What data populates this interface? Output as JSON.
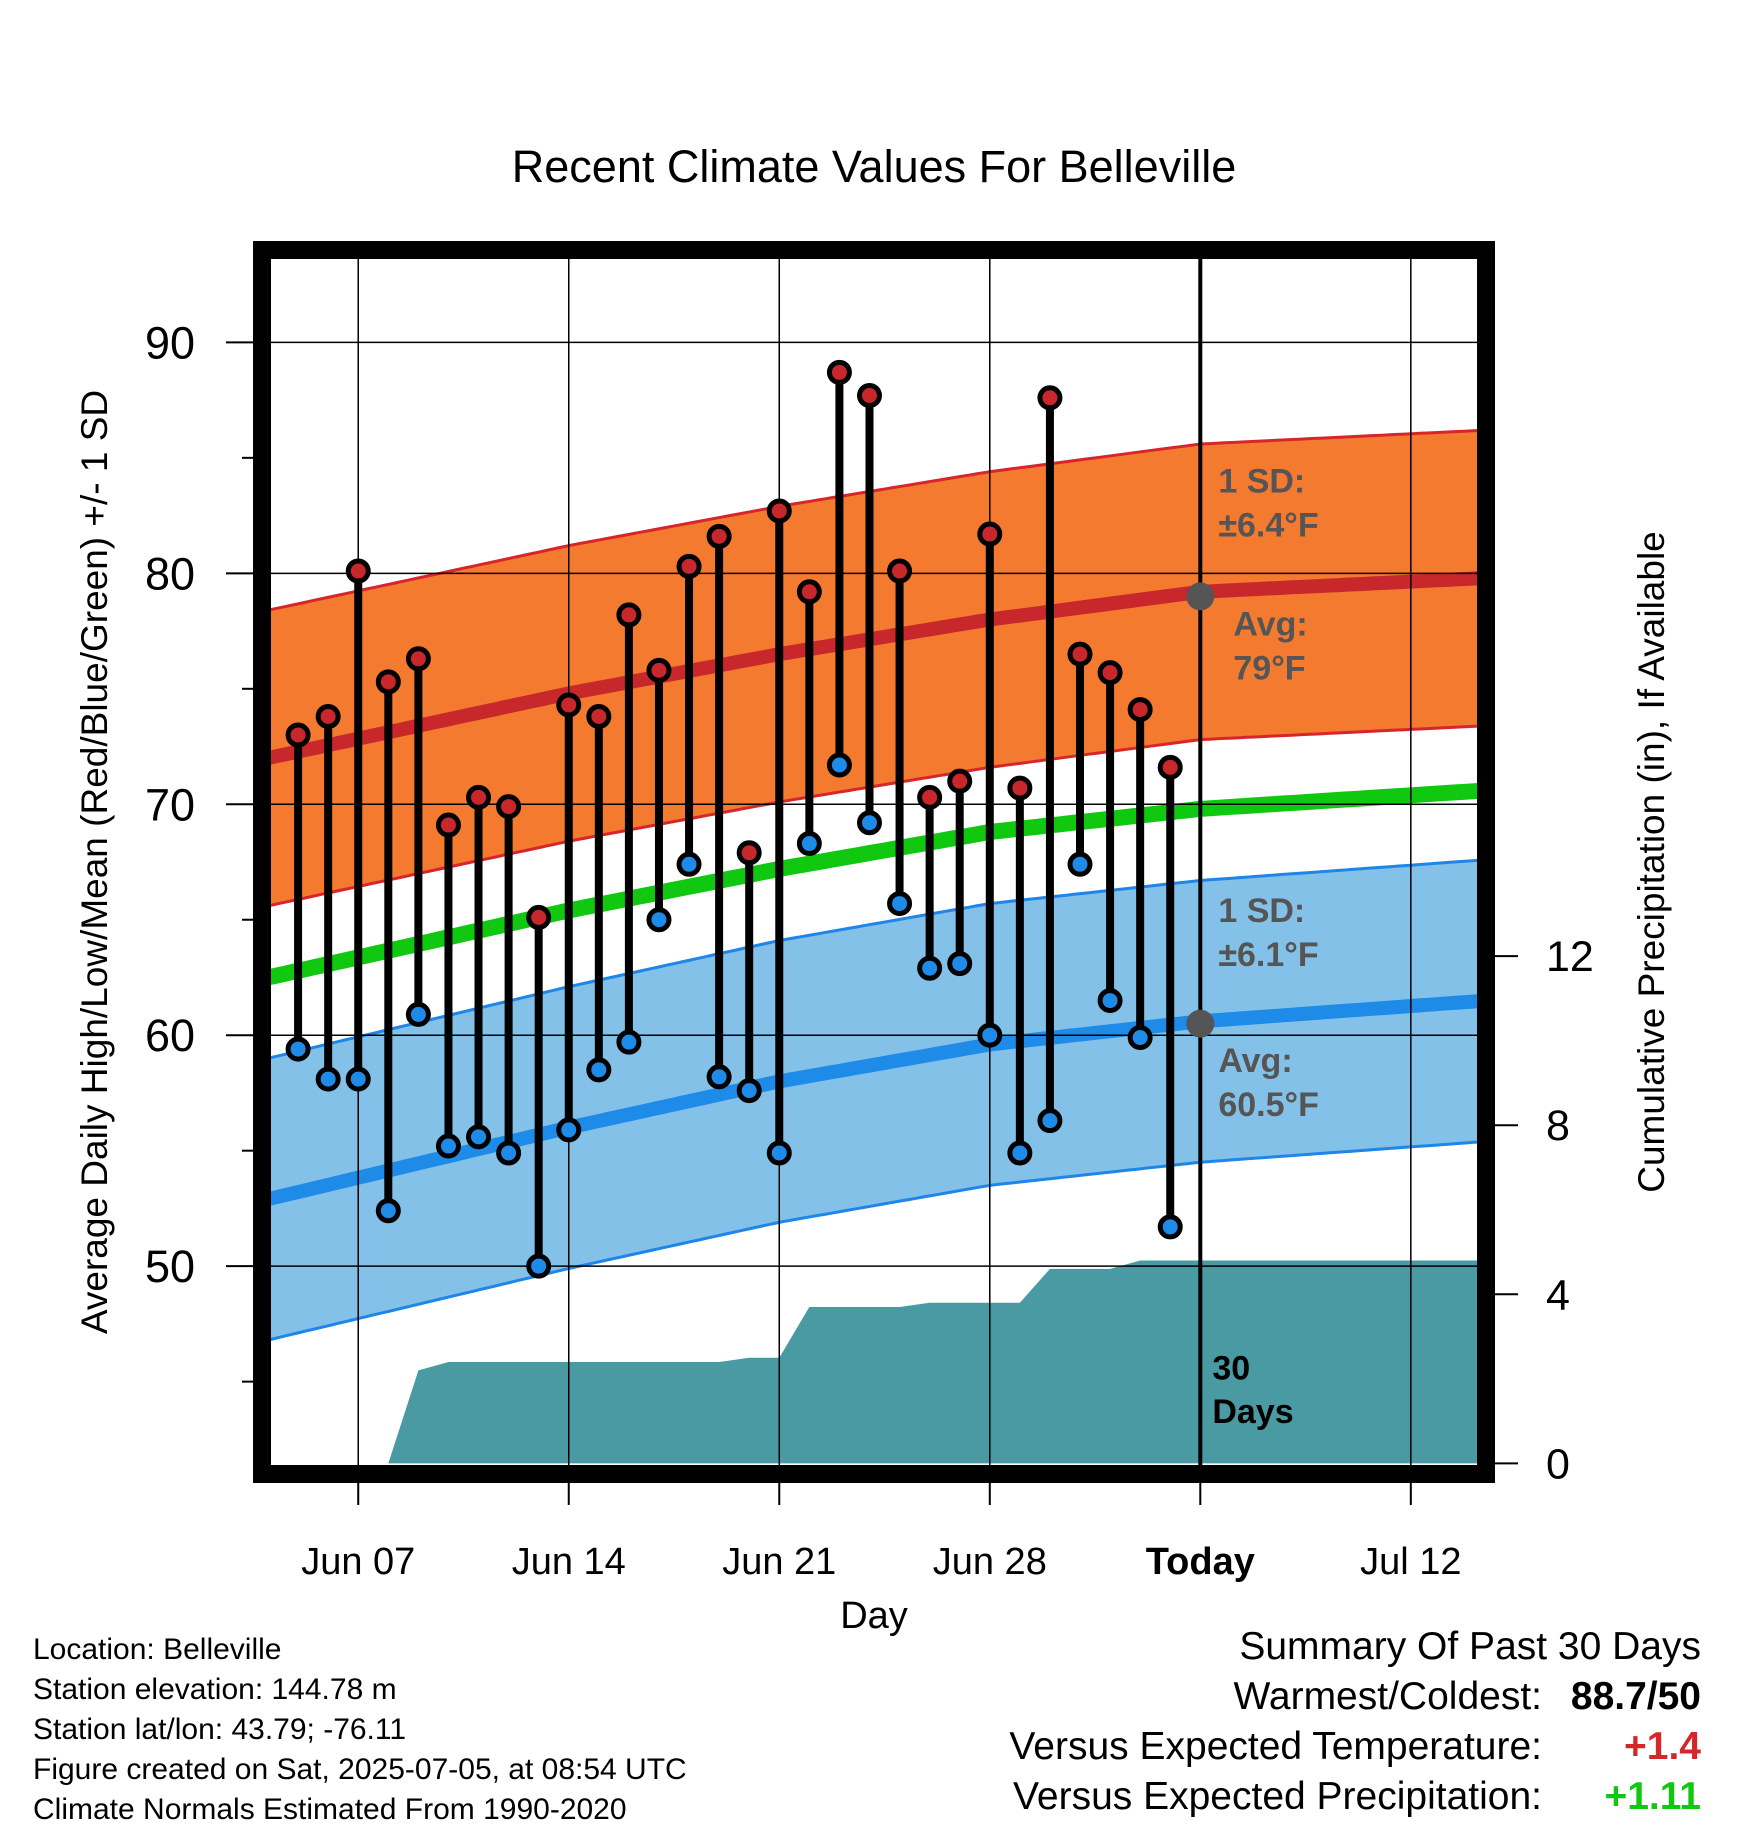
{
  "chart_data": {
    "type": "line",
    "title": "Recent Climate Values For Belleville",
    "xlabel": "Day",
    "ylabel_left": "Average Daily High/Low/Mean (Red/Blue/Green) +/- 1 SD",
    "ylabel_right": "Cumulative Precipitation (in), If Available",
    "x_ticks": [
      {
        "day": 7,
        "label": "Jun 07"
      },
      {
        "day": 14,
        "label": "Jun 14"
      },
      {
        "day": 21,
        "label": "Jun 21"
      },
      {
        "day": 28,
        "label": "Jun 28"
      },
      {
        "day": 35,
        "label": "Today"
      },
      {
        "day": 42,
        "label": "Jul 12"
      }
    ],
    "x_axis_note": "day numbers count from May 31 (day 1 = Jun 01)",
    "xlim": [
      3.8,
      44.5
    ],
    "ylim": [
      41,
      94
    ],
    "y_ticks": [
      50,
      60,
      70,
      80,
      90
    ],
    "y2lim": [
      -0.25,
      28.7
    ],
    "y2_ticks": [
      0,
      4,
      8,
      12
    ],
    "today_day": 35,
    "today_label": "30\nDays",
    "normal_high": {
      "day": [
        4,
        14,
        21,
        28,
        35,
        44.5
      ],
      "values": [
        72.0,
        74.8,
        76.5,
        78.0,
        79.2,
        79.8
      ]
    },
    "normal_high_sd": 6.4,
    "normal_low": {
      "day": [
        4,
        14,
        21,
        28,
        35,
        44.5
      ],
      "values": [
        52.9,
        56.0,
        58.0,
        59.6,
        60.6,
        61.5
      ]
    },
    "normal_low_sd": 6.1,
    "normal_mean": {
      "day": [
        4,
        14,
        21,
        28,
        35,
        44.5
      ],
      "values": [
        62.5,
        65.4,
        67.2,
        68.8,
        69.8,
        70.6
      ]
    },
    "annotations": {
      "high_sd_label": "1 SD:",
      "high_sd_value": "±6.4°F",
      "high_avg_label": "Avg:",
      "high_avg_value": "79°F",
      "low_sd_label": "1 SD:",
      "low_sd_value": "±6.1°F",
      "low_avg_label": "Avg:",
      "low_avg_value": "60.5°F"
    },
    "today_normal_high": 79,
    "today_normal_low": 60.5,
    "daily": {
      "day": [
        5,
        6,
        7,
        8,
        9,
        10,
        11,
        12,
        13,
        14,
        15,
        16,
        17,
        18,
        19,
        20,
        21,
        22,
        23,
        24,
        25,
        26,
        27,
        28,
        29,
        30,
        31,
        32,
        33,
        34
      ],
      "high": [
        73.0,
        73.8,
        80.1,
        75.3,
        76.3,
        69.1,
        70.3,
        69.9,
        65.1,
        74.3,
        73.8,
        78.2,
        75.8,
        80.3,
        81.6,
        67.9,
        82.7,
        79.2,
        88.7,
        87.7,
        80.1,
        70.3,
        71.0,
        81.7,
        70.7,
        87.6,
        76.5,
        75.7,
        74.1,
        71.6
      ],
      "low": [
        59.4,
        58.1,
        58.1,
        52.4,
        60.9,
        55.2,
        55.6,
        54.9,
        50.0,
        55.9,
        58.5,
        59.7,
        65.0,
        67.4,
        58.2,
        57.6,
        54.9,
        68.3,
        71.7,
        69.2,
        65.7,
        62.9,
        63.1,
        60.0,
        54.9,
        56.3,
        67.4,
        61.5,
        59.9,
        51.7
      ]
    },
    "precipitation": {
      "day": [
        8,
        9,
        10,
        11,
        12,
        13,
        14,
        15,
        16,
        17,
        18,
        19,
        20,
        21,
        22,
        23,
        24,
        25,
        26,
        27,
        28,
        29,
        30,
        31,
        32,
        33,
        34,
        35,
        44.5
      ],
      "values": [
        0.0,
        2.2,
        2.4,
        2.4,
        2.4,
        2.4,
        2.4,
        2.4,
        2.4,
        2.4,
        2.4,
        2.4,
        2.5,
        2.5,
        3.7,
        3.7,
        3.7,
        3.7,
        3.8,
        3.8,
        3.8,
        3.8,
        4.6,
        4.6,
        4.6,
        4.8,
        4.8,
        4.8,
        4.8
      ]
    },
    "colors": {
      "high_band": "#f47a2f",
      "high_edge": "#d7262b",
      "normal_high": "#c8272c",
      "low_band": "#83c1e8",
      "low_edge": "#1e86e8",
      "normal_low": "#1e8be8",
      "normal_mean": "#10c810",
      "precip": "#4a9aa4",
      "high_dot": "#c8272c",
      "low_dot": "#1e8be8",
      "annotation": "#555555"
    }
  },
  "info": {
    "location": "Location: Belleville",
    "elevation": "Station elevation: 144.78 m",
    "latlon": "Station lat/lon: 43.79; -76.11",
    "created": "Figure created on Sat, 2025-07-05, at 08:54 UTC",
    "normals": "Climate Normals Estimated From 1990-2020"
  },
  "summary": {
    "title": "Summary Of Past 30 Days",
    "warmest_label": "Warmest/Coldest:",
    "warmest_value": "88.7/50",
    "temp_label": "Versus Expected Temperature:",
    "temp_value": "+1.4",
    "temp_color": "#d7262b",
    "precip_label": "Versus Expected Precipitation:",
    "precip_value": "+1.11",
    "precip_color": "#10c810"
  }
}
